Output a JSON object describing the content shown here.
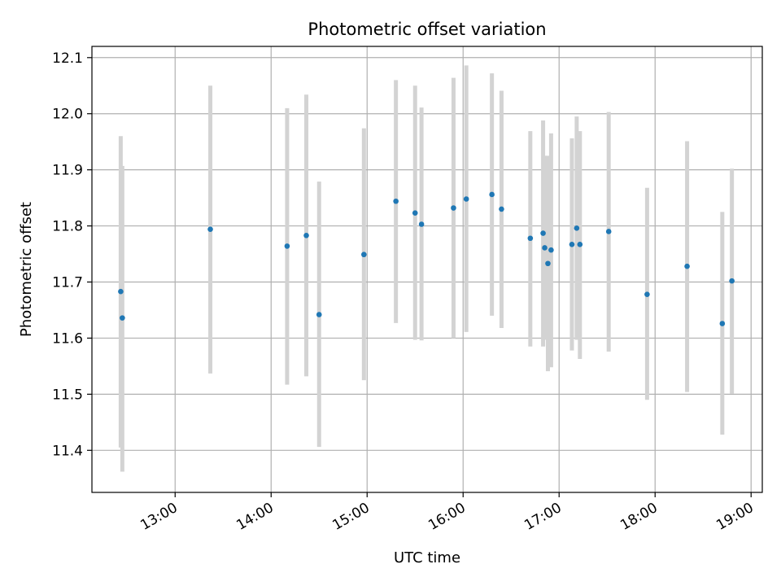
{
  "chart_data": {
    "type": "scatter",
    "title": "Photometric offset variation",
    "xlabel": "UTC time",
    "ylabel": "Photometric offset",
    "x_axis": "time",
    "xlim": [
      "12:08",
      "19:07"
    ],
    "ylim": [
      11.325,
      12.12
    ],
    "xticks": [
      "13:00",
      "14:00",
      "15:00",
      "16:00",
      "17:00",
      "18:00",
      "19:00"
    ],
    "yticks": [
      11.4,
      11.5,
      11.6,
      11.7,
      11.8,
      11.9,
      12.0,
      12.1
    ],
    "grid": true,
    "legend": false,
    "colors": {
      "point": "#1f77b4",
      "errorbar": "#d3d3d3",
      "grid": "#b0b0b0"
    },
    "points": [
      {
        "time": "12:26",
        "y": 11.683,
        "err_low": 11.405,
        "err_high": 11.96
      },
      {
        "time": "12:27",
        "y": 11.636,
        "err_low": 11.362,
        "err_high": 11.907
      },
      {
        "time": "13:22",
        "y": 11.794,
        "err_low": 11.537,
        "err_high": 12.05
      },
      {
        "time": "14:10",
        "y": 11.764,
        "err_low": 11.517,
        "err_high": 12.01
      },
      {
        "time": "14:22",
        "y": 11.783,
        "err_low": 11.532,
        "err_high": 12.034
      },
      {
        "time": "14:30",
        "y": 11.642,
        "err_low": 11.406,
        "err_high": 11.879
      },
      {
        "time": "14:58",
        "y": 11.749,
        "err_low": 11.525,
        "err_high": 11.974
      },
      {
        "time": "15:18",
        "y": 11.844,
        "err_low": 11.627,
        "err_high": 12.06
      },
      {
        "time": "15:30",
        "y": 11.823,
        "err_low": 11.597,
        "err_high": 12.05
      },
      {
        "time": "15:34",
        "y": 11.803,
        "err_low": 11.596,
        "err_high": 12.011
      },
      {
        "time": "15:54",
        "y": 11.832,
        "err_low": 11.6,
        "err_high": 12.064
      },
      {
        "time": "16:02",
        "y": 11.848,
        "err_low": 11.611,
        "err_high": 12.086
      },
      {
        "time": "16:18",
        "y": 11.856,
        "err_low": 11.64,
        "err_high": 12.072
      },
      {
        "time": "16:24",
        "y": 11.83,
        "err_low": 11.618,
        "err_high": 12.041
      },
      {
        "time": "16:42",
        "y": 11.778,
        "err_low": 11.585,
        "err_high": 11.969
      },
      {
        "time": "16:50",
        "y": 11.787,
        "err_low": 11.585,
        "err_high": 11.988
      },
      {
        "time": "16:51",
        "y": 11.761,
        "err_low": 11.597,
        "err_high": 11.925
      },
      {
        "time": "16:53",
        "y": 11.733,
        "err_low": 11.541,
        "err_high": 11.925
      },
      {
        "time": "16:55",
        "y": 11.757,
        "err_low": 11.548,
        "err_high": 11.965
      },
      {
        "time": "17:08",
        "y": 11.767,
        "err_low": 11.578,
        "err_high": 11.956
      },
      {
        "time": "17:11",
        "y": 11.796,
        "err_low": 11.597,
        "err_high": 11.995
      },
      {
        "time": "17:13",
        "y": 11.767,
        "err_low": 11.563,
        "err_high": 11.969
      },
      {
        "time": "17:31",
        "y": 11.79,
        "err_low": 11.576,
        "err_high": 12.003
      },
      {
        "time": "17:55",
        "y": 11.678,
        "err_low": 11.49,
        "err_high": 11.868
      },
      {
        "time": "18:20",
        "y": 11.728,
        "err_low": 11.504,
        "err_high": 11.951
      },
      {
        "time": "18:42",
        "y": 11.626,
        "err_low": 11.428,
        "err_high": 11.825
      },
      {
        "time": "18:48",
        "y": 11.702,
        "err_low": 11.501,
        "err_high": 11.902
      }
    ]
  }
}
